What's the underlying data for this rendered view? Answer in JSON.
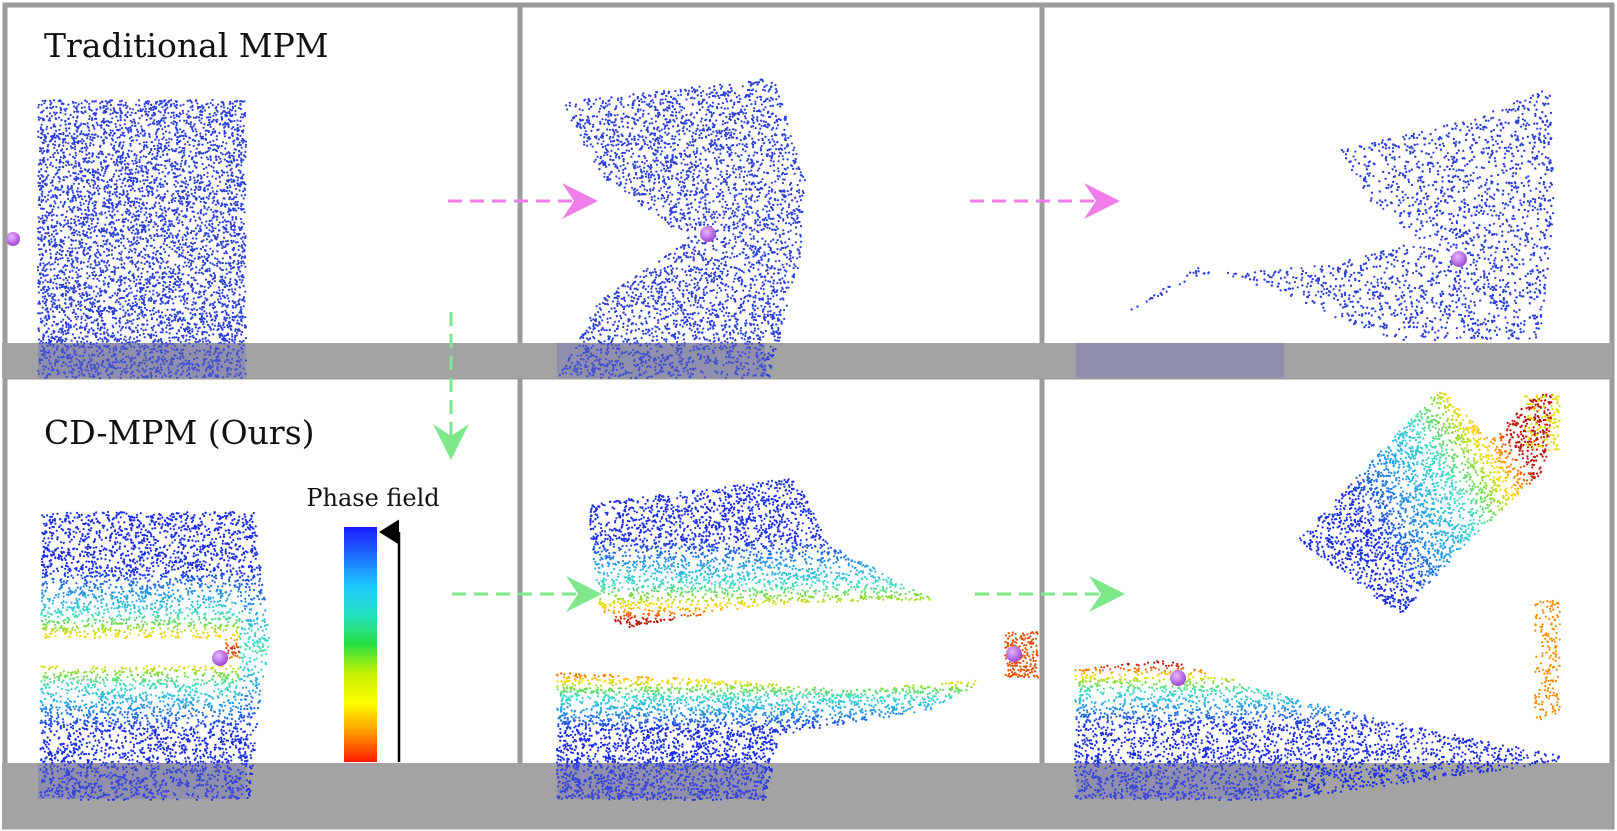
{
  "rows": [
    {
      "id": "traditional",
      "label": "Traditional MPM"
    },
    {
      "id": "cdmpm",
      "label": "CD-MPM (Ours)"
    }
  ],
  "colorbar": {
    "title": "Phase field",
    "gradient": [
      "#1a1aff",
      "#1f6fff",
      "#20c8ff",
      "#22e0c0",
      "#28e040",
      "#c8f000",
      "#ffff00",
      "#ff9900",
      "#ff1a00"
    ]
  },
  "colors": {
    "particle_blue": "#2b3fd9",
    "ground": "#9a9a9a",
    "panel_border": "#9b9b9b",
    "arrow_magenta": "#f07ee8",
    "arrow_green": "#7ee88a",
    "projectile": "#b05be0"
  }
}
